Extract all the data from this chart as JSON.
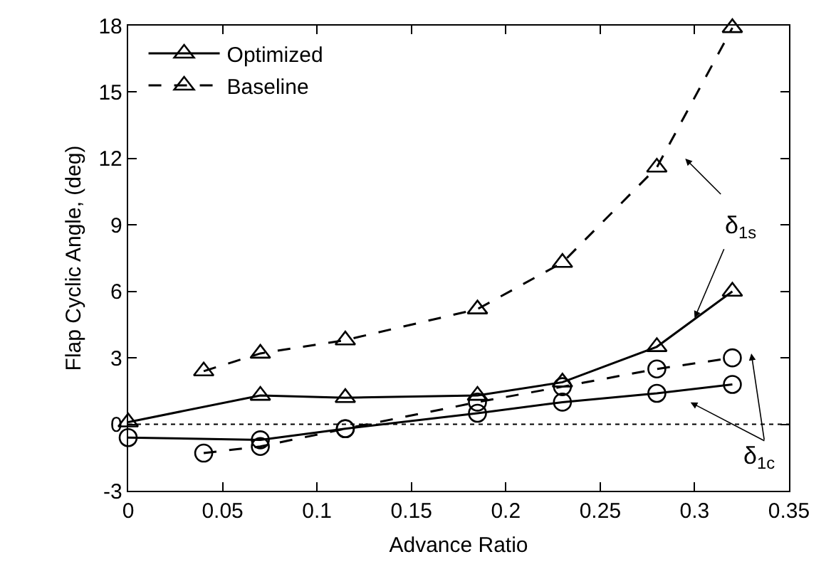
{
  "chart_data": {
    "type": "line",
    "xlabel": "Advance Ratio",
    "ylabel": "Flap Cyclic Angle, (deg)",
    "xlim": [
      0,
      0.35
    ],
    "xticks": [
      0,
      0.05,
      0.1,
      0.15,
      0.2,
      0.25,
      0.3,
      0.35
    ],
    "ylim": [
      -3,
      18
    ],
    "yticks": [
      -3,
      0,
      3,
      6,
      9,
      12,
      15,
      18
    ],
    "grid": false,
    "legend": "top left",
    "series": [
      {
        "name": "Optimized",
        "color": "#000000",
        "line_style": "solid",
        "marker": "triangle",
        "x": [
          0,
          0.07,
          0.115,
          0.185,
          0.23,
          0.28,
          0.32
        ],
        "values": [
          0.1,
          1.3,
          1.2,
          1.3,
          1.9,
          3.5,
          6.0
        ]
      },
      {
        "name": "Baseline",
        "color": "#000000",
        "line_style": "dashed",
        "marker": "triangle",
        "x": [
          0.04,
          0.07,
          0.115,
          0.185,
          0.23,
          0.28,
          0.32
        ],
        "values": [
          2.4,
          3.2,
          3.8,
          5.2,
          7.3,
          11.6,
          17.9
        ]
      },
      {
        "color": "#000000",
        "line_style": "solid",
        "marker": "circle",
        "x": [
          0,
          0.07,
          0.115,
          0.185,
          0.23,
          0.28,
          0.32
        ],
        "values": [
          -0.6,
          -0.7,
          -0.2,
          0.5,
          1.0,
          1.4,
          1.8
        ]
      },
      {
        "color": "#000000",
        "line_style": "dashed",
        "marker": "circle",
        "x": [
          0.04,
          0.07,
          0.115,
          0.185,
          0.23,
          0.28,
          0.32
        ],
        "values": [
          -1.3,
          -1.0,
          -0.2,
          1.0,
          1.7,
          2.5,
          3.0
        ]
      }
    ],
    "ref_lines": [
      {
        "axis": "y",
        "value": 0,
        "color": "#000000",
        "line_style": "dotted"
      }
    ],
    "annotations": [
      {
        "text": "δ$_{1s}$",
        "x": 0.3,
        "y": 4.8
      },
      "δ$_{1c}$"
    ]
  }
}
